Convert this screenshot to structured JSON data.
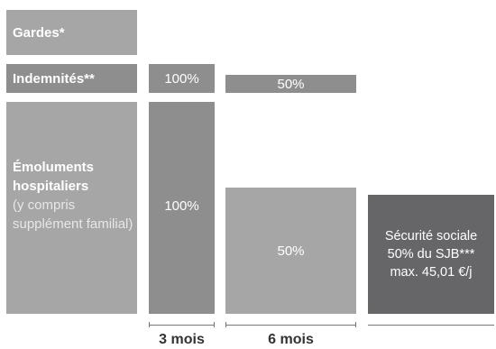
{
  "rows": {
    "gardes": "Gardes*",
    "indemnites": "Indemnités**",
    "emoluments_bold": "Émoluments hospitaliers",
    "emoluments_detail": "(y compris supplément familial)"
  },
  "indemnites_values": {
    "first": "100%",
    "second": "50%"
  },
  "emoluments_values": {
    "first": "100%",
    "second": "50%"
  },
  "securite_sociale": {
    "line1": "Sécurité sociale",
    "line2": "50% du SJB***",
    "line3": "max. 45,01 €/j"
  },
  "timeline": {
    "label1": "3 mois",
    "label2": "6 mois"
  },
  "colors": {
    "light_gray": "#a7a6a6",
    "mid_gray": "#8f8e8e",
    "dark_gray": "#666568"
  }
}
